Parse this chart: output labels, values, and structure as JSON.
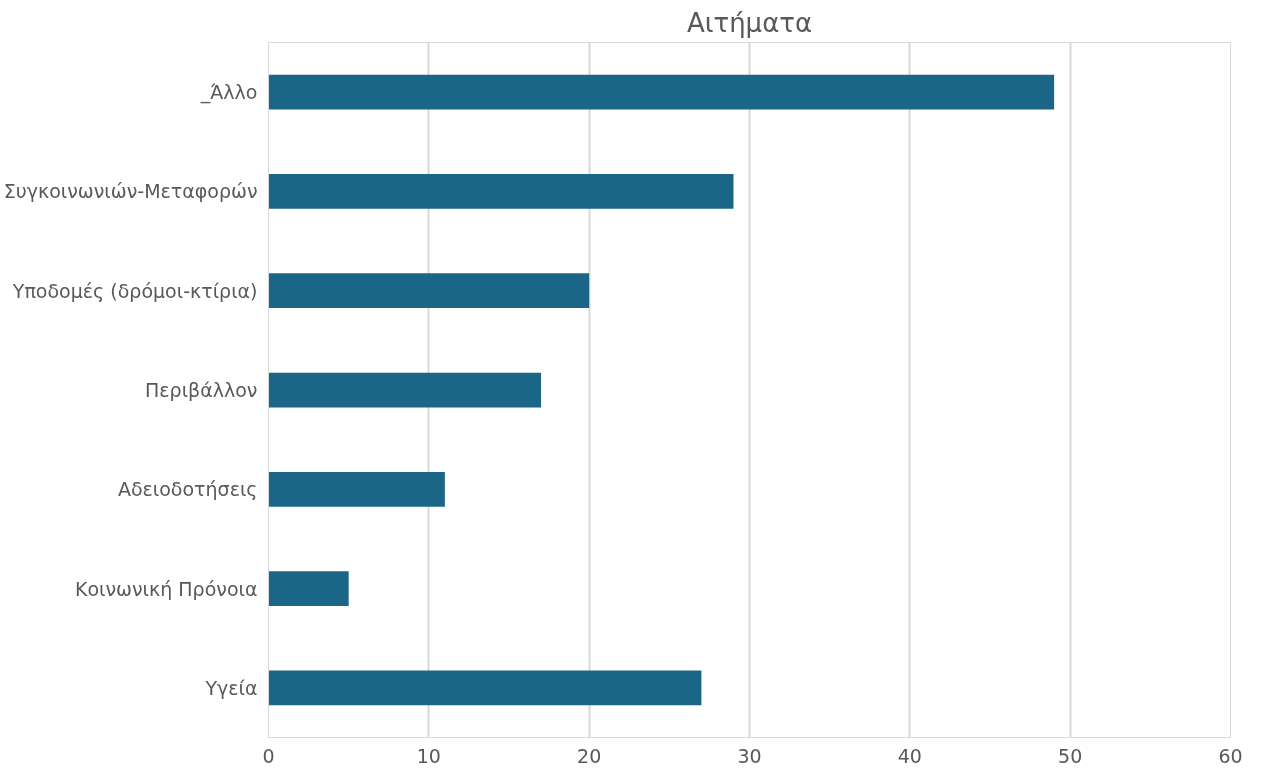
{
  "chart_data": {
    "type": "bar",
    "orientation": "horizontal",
    "title": "Αιτήματα",
    "categories": [
      "_Άλλο",
      "Συγκοινωνιών-Μεταφορών",
      "Υποδομές (δρόμοι-κτίρια)",
      "Περιβάλλον",
      "Αδειοδοτήσεις",
      "Κοινωνική Πρόνοια",
      "Υγεία"
    ],
    "values": [
      49,
      29,
      20,
      17,
      11,
      5,
      27
    ],
    "color": "#1b6587",
    "xlim": [
      0,
      60
    ],
    "xticks": [
      0,
      10,
      20,
      30,
      40,
      50,
      60
    ],
    "grid": "x"
  }
}
